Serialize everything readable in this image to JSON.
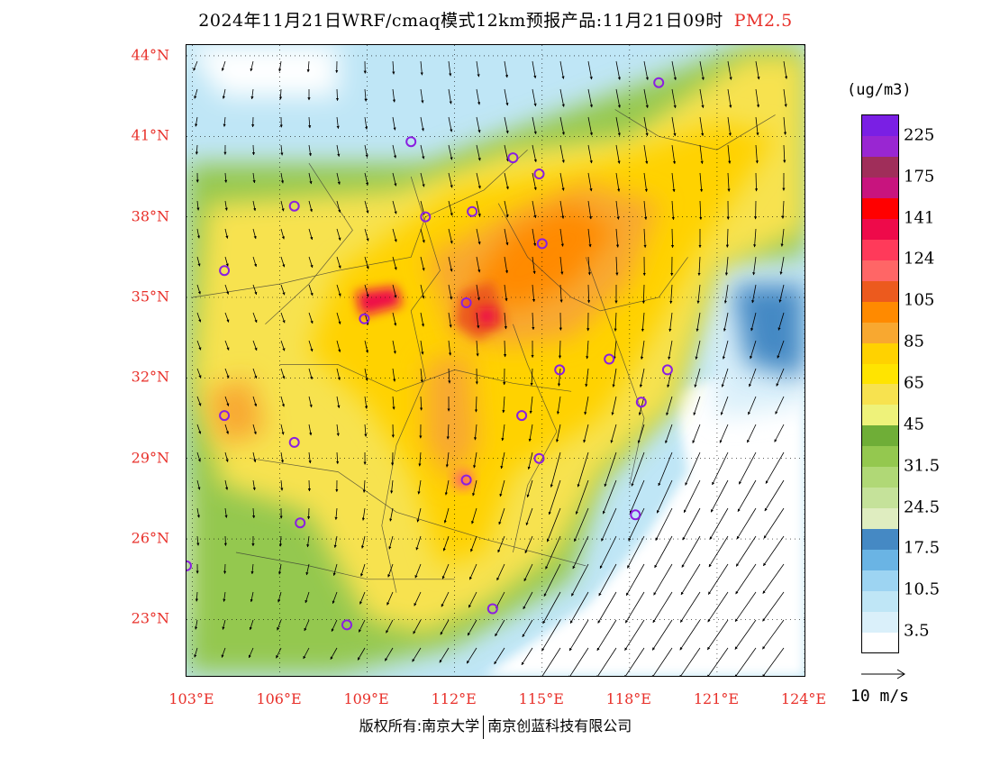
{
  "title": {
    "main": "2024年11月21日WRF/cmaq模式12km预报产品:11月21日09时",
    "species": "PM2.5"
  },
  "axes": {
    "lat_labels": [
      "44°N",
      "41°N",
      "38°N",
      "35°N",
      "32°N",
      "29°N",
      "26°N",
      "23°N"
    ],
    "lat_values": [
      44,
      41,
      38,
      35,
      32,
      29,
      26,
      23
    ],
    "lon_labels": [
      "103°E",
      "106°E",
      "109°E",
      "112°E",
      "115°E",
      "118°E",
      "121°E",
      "124°E"
    ],
    "lon_values": [
      103,
      106,
      109,
      112,
      115,
      118,
      121,
      124
    ],
    "lat_range": [
      20.9,
      44.4
    ],
    "lon_range": [
      102.8,
      124.0
    ]
  },
  "legend": {
    "unit": "(ug/m3)",
    "colors": [
      "#ffffff",
      "#daf0fa",
      "#bfe6f6",
      "#9dd4f2",
      "#6ab4e4",
      "#4589c4",
      "#dfedc0",
      "#c5e29a",
      "#b0d876",
      "#94c84f",
      "#6fae37",
      "#eef27a",
      "#f7e24f",
      "#ffe400",
      "#ffd200",
      "#f8a830",
      "#ff8a00",
      "#ec5a1e",
      "#ff6666",
      "#ff3a5a",
      "#ee0a4a",
      "#ff0000",
      "#c8147e",
      "#a02e5a",
      "#9926d2",
      "#7a1fe4"
    ],
    "labels": [
      "3.5",
      "10.5",
      "17.5",
      "24.5",
      "31.5",
      "45",
      "65",
      "85",
      "105",
      "124",
      "141",
      "175",
      "225"
    ]
  },
  "wind_reference": {
    "label": "10 m/s"
  },
  "copyright": {
    "left": "版权所有:南京大学",
    "right": "南京创蓝科技有限公司"
  },
  "stations": [
    [
      119.0,
      43.0
    ],
    [
      110.5,
      40.8
    ],
    [
      114.0,
      40.2
    ],
    [
      114.9,
      39.6
    ],
    [
      106.5,
      38.4
    ],
    [
      111.0,
      38.0
    ],
    [
      112.6,
      38.2
    ],
    [
      115.0,
      37.0
    ],
    [
      104.1,
      36.0
    ],
    [
      112.4,
      34.8
    ],
    [
      108.9,
      34.2
    ],
    [
      117.3,
      32.7
    ],
    [
      115.6,
      32.3
    ],
    [
      119.3,
      32.3
    ],
    [
      114.3,
      30.6
    ],
    [
      104.1,
      30.6
    ],
    [
      118.4,
      31.1
    ],
    [
      106.5,
      29.6
    ],
    [
      114.9,
      29.0
    ],
    [
      112.4,
      28.2
    ],
    [
      106.7,
      26.6
    ],
    [
      102.8,
      25.0
    ],
    [
      118.2,
      26.9
    ],
    [
      113.3,
      23.4
    ],
    [
      108.3,
      22.8
    ]
  ]
}
